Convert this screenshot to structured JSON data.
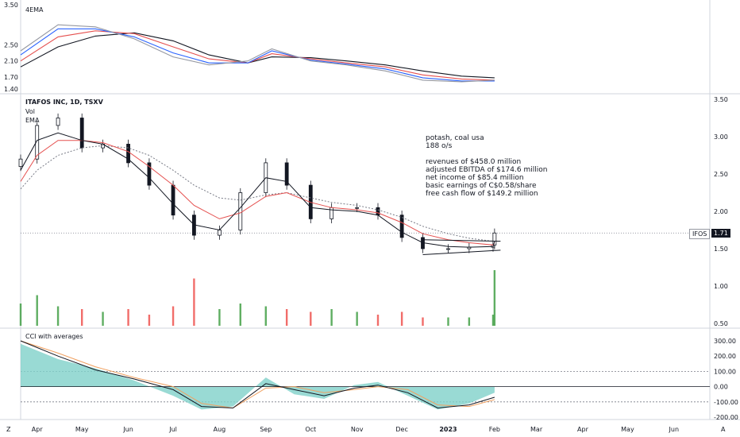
{
  "header": {
    "symbol_title": "ITAFOS INC, 1D, TSXV",
    "vol_label": "Vol",
    "ema_label": "EMA",
    "ema_panel_label": "4EMA",
    "cci_label": "CCI with averages"
  },
  "annotation": {
    "lines": [
      "potash, coal  usa",
      "188 o/s",
      "",
      "revenues of $458.0 million",
      "adjusted EBITDA of $174.6 million",
      "net income of $85.4 million",
      "basic earnings of C$0.58/share",
      "free cash flow of $149.2 million"
    ]
  },
  "price_badge": {
    "symbol": "IFOS",
    "value": "1.71"
  },
  "footer": {
    "left_icon": "Z",
    "right_icon": "A"
  },
  "colors": {
    "up": "#26a69a",
    "down": "#131722",
    "ema_red": "#e5504f",
    "ema_black": "#131722",
    "ema_blue": "#2962ff",
    "cci_fill": "#7fd1c9",
    "vol_green": "#43a047",
    "vol_red": "#ef5350",
    "vol_ma": "#f0a060"
  },
  "chart_data": [
    {
      "type": "line",
      "title": "4EMA",
      "y_ticks": [
        "3.50",
        "2.50",
        "2.10",
        "1.70",
        "1.40"
      ],
      "series": [],
      "x": [
        "2022-03-21",
        "2022-04-15",
        "2022-05-10",
        "2022-06-05",
        "2022-07-01",
        "2022-07-25",
        "2022-08-20",
        "2022-09-05",
        "2022-10-01",
        "2022-10-25",
        "2022-11-20",
        "2022-12-15",
        "2023-01-10",
        "2023-02-01"
      ],
      "lines": {
        "black": [
          1.95,
          2.45,
          2.72,
          2.8,
          2.6,
          2.25,
          2.05,
          2.2,
          2.18,
          2.1,
          2.0,
          1.85,
          1.72,
          1.68
        ],
        "red": [
          2.1,
          2.7,
          2.85,
          2.78,
          2.45,
          2.15,
          2.05,
          2.28,
          2.15,
          2.05,
          1.95,
          1.75,
          1.65,
          1.62
        ],
        "blue": [
          2.25,
          2.9,
          2.9,
          2.7,
          2.3,
          2.05,
          2.05,
          2.35,
          2.12,
          2.02,
          1.9,
          1.68,
          1.6,
          1.6
        ],
        "gray": [
          2.35,
          3.0,
          2.95,
          2.65,
          2.2,
          2.0,
          2.1,
          2.4,
          2.1,
          2.0,
          1.85,
          1.62,
          1.58,
          1.62
        ]
      }
    },
    {
      "type": "candlestick",
      "title": "ITAFOS INC, 1D, TSXV",
      "y_ticks": [
        "3.50",
        "3.00",
        "2.50",
        "2.00",
        "1.50",
        "1.00",
        "0.50"
      ],
      "ylim": [
        0.45,
        3.55
      ],
      "last_price": 1.71,
      "dates": [
        "2022-03-21",
        "2022-04-01",
        "2022-04-15",
        "2022-05-01",
        "2022-05-15",
        "2022-06-01",
        "2022-06-15",
        "2022-07-01",
        "2022-07-15",
        "2022-08-01",
        "2022-08-15",
        "2022-09-01",
        "2022-09-15",
        "2022-10-01",
        "2022-10-15",
        "2022-11-01",
        "2022-11-15",
        "2022-12-01",
        "2022-12-15",
        "2023-01-01",
        "2023-01-15",
        "2023-01-31",
        "2023-02-01"
      ],
      "close": [
        2.7,
        3.15,
        3.25,
        2.85,
        2.9,
        2.65,
        2.35,
        1.95,
        1.68,
        1.75,
        2.25,
        2.65,
        2.35,
        1.9,
        2.05,
        2.05,
        1.95,
        1.65,
        1.5,
        1.5,
        1.52,
        1.55,
        1.71
      ],
      "ema_fast": [
        2.55,
        2.95,
        3.05,
        2.95,
        2.9,
        2.7,
        2.45,
        2.1,
        1.82,
        1.75,
        2.05,
        2.45,
        2.4,
        2.05,
        2.02,
        2.0,
        1.95,
        1.72,
        1.58,
        1.53,
        1.52,
        1.53,
        1.6
      ],
      "ema_slow": [
        2.4,
        2.75,
        2.95,
        2.95,
        2.92,
        2.8,
        2.6,
        2.35,
        2.08,
        1.9,
        1.98,
        2.2,
        2.25,
        2.12,
        2.05,
        2.02,
        1.98,
        1.85,
        1.7,
        1.62,
        1.58,
        1.55,
        1.58
      ],
      "ema_dotted": [
        2.3,
        2.55,
        2.75,
        2.85,
        2.88,
        2.85,
        2.75,
        2.55,
        2.35,
        2.18,
        2.15,
        2.22,
        2.25,
        2.18,
        2.12,
        2.08,
        2.02,
        1.92,
        1.8,
        1.7,
        1.64,
        1.6,
        1.6
      ],
      "volume_rel": [
        0.4,
        0.55,
        0.35,
        0.3,
        0.25,
        0.3,
        0.2,
        0.35,
        0.85,
        0.3,
        0.4,
        0.35,
        0.3,
        0.25,
        0.3,
        0.25,
        0.2,
        0.25,
        0.15,
        0.15,
        0.15,
        0.2,
        1.0
      ],
      "triangle": {
        "upper": [
          1.62,
          1.6
        ],
        "lower": [
          1.42,
          1.48
        ]
      }
    },
    {
      "type": "area",
      "title": "CCI with averages",
      "y_ticks": [
        "300.00",
        "200.00",
        "100.00",
        "0.00",
        "-100.00",
        "-200.00"
      ],
      "ylim": [
        -200,
        300
      ],
      "dates": [
        "2022-03-21",
        "2022-04-15",
        "2022-05-10",
        "2022-06-05",
        "2022-07-01",
        "2022-07-20",
        "2022-08-10",
        "2022-09-01",
        "2022-09-20",
        "2022-10-10",
        "2022-10-30",
        "2022-11-15",
        "2022-12-05",
        "2022-12-25",
        "2023-01-15",
        "2023-02-01"
      ],
      "cci": [
        280,
        180,
        120,
        40,
        -60,
        -150,
        -130,
        60,
        -50,
        -80,
        10,
        30,
        -60,
        -150,
        -110,
        -40
      ],
      "avg1": [
        300,
        200,
        110,
        50,
        -20,
        -130,
        -140,
        20,
        -20,
        -60,
        -10,
        10,
        -40,
        -140,
        -120,
        -70
      ],
      "avg2": [
        300,
        220,
        130,
        60,
        0,
        -110,
        -140,
        -10,
        0,
        -40,
        -20,
        0,
        -20,
        -120,
        -130,
        -85
      ]
    }
  ],
  "x_axis": [
    "Apr",
    "May",
    "Jun",
    "Jul",
    "Aug",
    "Sep",
    "Oct",
    "Nov",
    "Dec",
    "2023",
    "Feb",
    "Mar",
    "Apr",
    "May",
    "Jun"
  ]
}
